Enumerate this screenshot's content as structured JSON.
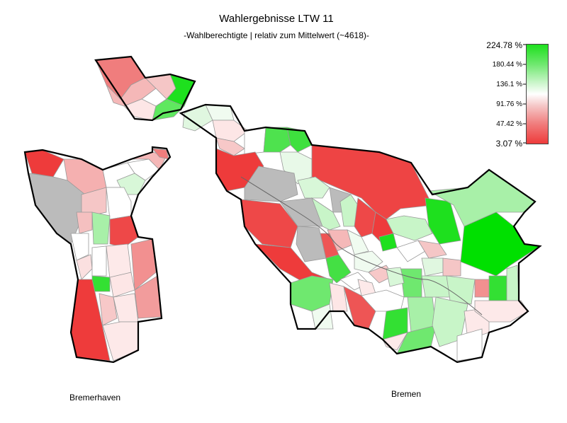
{
  "title": "Wahlergebnisse LTW 11",
  "subtitle": "-Wahlberechtigte | relativ zum Mittelwert (~4618)-",
  "legend": {
    "labels": [
      "224.78 %",
      "180.44 %",
      "136.1 %",
      "91.76 %",
      "47.42 %",
      "3.07 %"
    ],
    "colors": [
      "#1ee01e",
      "#6fe86f",
      "#c8f5c8",
      "#ffffff",
      "#f5c6c6",
      "#f07d7d",
      "#ee3b3b"
    ]
  },
  "regions": {
    "bremerhaven": "Bremerhaven",
    "bremen": "Bremen"
  }
}
